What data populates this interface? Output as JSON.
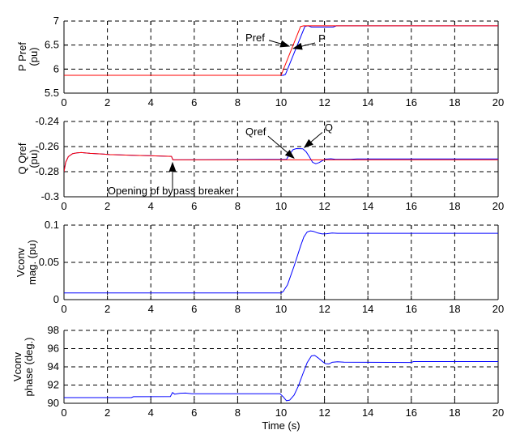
{
  "figure": {
    "background": "#ffffff",
    "axis_color": "#000000",
    "grid_color": "#000000",
    "reference_color": "#ff0000",
    "measured_color": "#0000ff",
    "xlabel": "Time (s)",
    "xlim": [
      0,
      20
    ],
    "xticks": [
      0,
      2,
      4,
      6,
      8,
      10,
      12,
      14,
      16,
      18,
      20
    ],
    "xtick_labels": [
      "0",
      "2",
      "4",
      "6",
      "8",
      "10",
      "12",
      "14",
      "16",
      "18",
      "20"
    ],
    "grid": "dashed"
  },
  "chart_data": [
    {
      "id": "p",
      "type": "line",
      "ylabel_lines": [
        "P Pref",
        "(pu)"
      ],
      "ylim": [
        5.5,
        7
      ],
      "yticks": [
        5.5,
        6,
        6.5,
        7
      ],
      "ytick_labels": [
        "5.5",
        "6",
        "6.5",
        "7"
      ],
      "series": [
        {
          "name": "P",
          "color": "#0000ff",
          "points": [
            [
              0,
              5.87
            ],
            [
              10.1,
              5.87
            ],
            [
              10.2,
              5.89
            ],
            [
              11.1,
              6.89
            ],
            [
              11.25,
              6.9
            ],
            [
              11.4,
              6.875
            ],
            [
              12.4,
              6.875
            ],
            [
              12.55,
              6.9
            ],
            [
              20,
              6.9
            ]
          ]
        },
        {
          "name": "Pref",
          "color": "#ff0000",
          "points": [
            [
              0,
              5.87
            ],
            [
              10,
              5.87
            ],
            [
              10.9,
              6.885
            ],
            [
              11.05,
              6.9
            ],
            [
              20,
              6.9
            ]
          ]
        }
      ],
      "annotations": [
        {
          "text": "Pref",
          "x": 8.36,
          "y": 6.58,
          "anchor": "start",
          "arrow": {
            "x1": 9.44,
            "y1": 6.6,
            "x2": 10.38,
            "y2": 6.475
          }
        },
        {
          "text": "P",
          "x": 11.72,
          "y": 6.56,
          "anchor": "start",
          "arrow": {
            "x1": 11.57,
            "y1": 6.545,
            "x2": 10.56,
            "y2": 6.43
          }
        }
      ]
    },
    {
      "id": "q",
      "type": "line",
      "ylabel_lines": [
        "Q Qref",
        "(pu)"
      ],
      "ylim": [
        -0.3,
        -0.24
      ],
      "yticks": [
        -0.3,
        -0.28,
        -0.26,
        -0.24
      ],
      "ytick_labels": [
        "-0.3",
        "-0.28",
        "-0.26",
        "-0.24"
      ],
      "series": [
        {
          "name": "Q",
          "color": "#0000ff",
          "points": [
            [
              0,
              -0.28
            ],
            [
              0.08,
              -0.2725
            ],
            [
              0.2,
              -0.268
            ],
            [
              0.4,
              -0.2656
            ],
            [
              0.6,
              -0.265
            ],
            [
              0.8,
              -0.2648
            ],
            [
              1.2,
              -0.2654
            ],
            [
              1.8,
              -0.266
            ],
            [
              2.1,
              -0.2664
            ],
            [
              2.7,
              -0.2667
            ],
            [
              3.3,
              -0.267
            ],
            [
              3.9,
              -0.2673
            ],
            [
              4.5,
              -0.2676
            ],
            [
              4.95,
              -0.2678
            ],
            [
              5.02,
              -0.2706
            ],
            [
              10.25,
              -0.2702
            ],
            [
              10.4,
              -0.266
            ],
            [
              10.55,
              -0.2625
            ],
            [
              10.7,
              -0.2616
            ],
            [
              11.0,
              -0.2618
            ],
            [
              11.15,
              -0.264
            ],
            [
              11.3,
              -0.268
            ],
            [
              11.45,
              -0.2725
            ],
            [
              11.6,
              -0.2737
            ],
            [
              11.75,
              -0.2728
            ],
            [
              11.9,
              -0.2712
            ],
            [
              12.05,
              -0.27
            ],
            [
              12.3,
              -0.2697
            ],
            [
              12.5,
              -0.2702
            ],
            [
              13.2,
              -0.2701
            ],
            [
              13.5,
              -0.2699
            ],
            [
              20,
              -0.2699
            ]
          ]
        },
        {
          "name": "Qref",
          "color": "#ff0000",
          "points": [
            [
              0,
              -0.28
            ],
            [
              0.08,
              -0.2725
            ],
            [
              0.2,
              -0.268
            ],
            [
              0.4,
              -0.2656
            ],
            [
              0.6,
              -0.265
            ],
            [
              0.8,
              -0.2648
            ],
            [
              1.2,
              -0.2654
            ],
            [
              1.8,
              -0.266
            ],
            [
              2.1,
              -0.2664
            ],
            [
              2.7,
              -0.2667
            ],
            [
              3.3,
              -0.267
            ],
            [
              3.9,
              -0.2673
            ],
            [
              4.5,
              -0.2676
            ],
            [
              4.95,
              -0.2678
            ],
            [
              5.02,
              -0.2706
            ],
            [
              20,
              -0.2706
            ]
          ]
        }
      ],
      "annotations": [
        {
          "text": "Qref",
          "x": 8.36,
          "y": -0.251,
          "anchor": "start",
          "arrow": {
            "x1": 9.4,
            "y1": -0.2517,
            "x2": 10.6,
            "y2": -0.2693
          }
        },
        {
          "text": "Q",
          "x": 12.01,
          "y": -0.2478,
          "anchor": "start",
          "arrow": {
            "x1": 11.9,
            "y1": -0.2487,
            "x2": 11.07,
            "y2": -0.2608
          }
        },
        {
          "text": "Opening of bypass breaker",
          "x": 2.01,
          "y": -0.298,
          "anchor": "start",
          "arrow": {
            "x1": 5.0,
            "y1": -0.2935,
            "x2": 5.0,
            "y2": -0.2728
          }
        }
      ]
    },
    {
      "id": "vmag",
      "type": "line",
      "ylabel_lines": [
        "Vconv",
        "mag. (pu)"
      ],
      "ylim": [
        0,
        0.1
      ],
      "yticks": [
        0,
        0.05,
        0.1
      ],
      "ytick_labels": [
        "0",
        "0.05",
        "0.1"
      ],
      "series": [
        {
          "name": "Vconv_mag",
          "color": "#0000ff",
          "points": [
            [
              0,
              0.009
            ],
            [
              10.0,
              0.009
            ],
            [
              10.1,
              0.011
            ],
            [
              10.3,
              0.02
            ],
            [
              10.6,
              0.045
            ],
            [
              10.9,
              0.072
            ],
            [
              11.05,
              0.084
            ],
            [
              11.2,
              0.0908
            ],
            [
              11.35,
              0.0923
            ],
            [
              11.5,
              0.0915
            ],
            [
              11.7,
              0.0893
            ],
            [
              11.9,
              0.0882
            ],
            [
              12.1,
              0.0885
            ],
            [
              12.35,
              0.0893
            ],
            [
              12.6,
              0.089
            ],
            [
              20,
              0.089
            ]
          ]
        }
      ],
      "annotations": []
    },
    {
      "id": "vphase",
      "type": "line",
      "ylabel_lines": [
        "Vconv",
        "phase (deg.)"
      ],
      "ylim": [
        90,
        98
      ],
      "yticks": [
        90,
        92,
        94,
        96,
        98
      ],
      "ytick_labels": [
        "90",
        "92",
        "94",
        "96",
        "98"
      ],
      "series": [
        {
          "name": "Vconv_phase",
          "color": "#0000ff",
          "points": [
            [
              0,
              90.62
            ],
            [
              3.1,
              90.62
            ],
            [
              3.2,
              90.72
            ],
            [
              4.9,
              90.74
            ],
            [
              5.0,
              91.18
            ],
            [
              5.1,
              91.0
            ],
            [
              5.35,
              91.1
            ],
            [
              5.6,
              91.12
            ],
            [
              5.9,
              91.05
            ],
            [
              9.95,
              91.05
            ],
            [
              10.1,
              90.7
            ],
            [
              10.25,
              90.28
            ],
            [
              10.4,
              90.35
            ],
            [
              10.6,
              90.9
            ],
            [
              10.8,
              91.9
            ],
            [
              11.0,
              93.2
            ],
            [
              11.2,
              94.45
            ],
            [
              11.4,
              95.2
            ],
            [
              11.55,
              95.25
            ],
            [
              11.7,
              95.0
            ],
            [
              11.9,
              94.6
            ],
            [
              12.05,
              94.35
            ],
            [
              12.2,
              94.32
            ],
            [
              12.35,
              94.5
            ],
            [
              12.6,
              94.55
            ],
            [
              12.9,
              94.52
            ],
            [
              16.0,
              94.48
            ],
            [
              16.1,
              94.58
            ],
            [
              20,
              94.58
            ]
          ]
        }
      ],
      "annotations": []
    }
  ]
}
